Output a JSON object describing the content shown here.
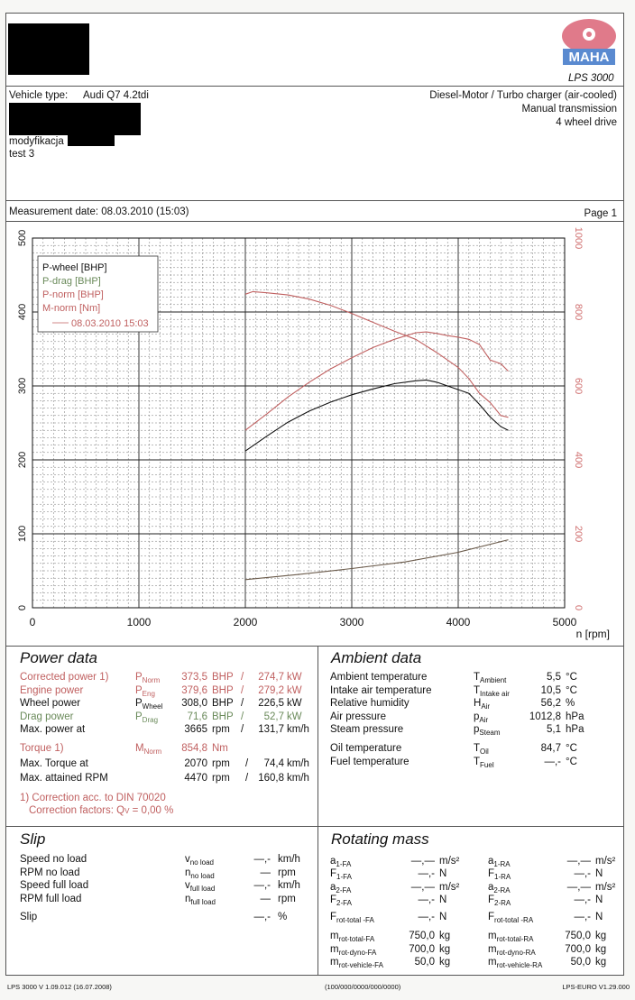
{
  "header": {
    "logo_text": "MAHA",
    "model": "LPS 3000",
    "vehicle_type_label": "Vehicle type:",
    "vehicle_type_value": "Audi Q7 4.2tdi",
    "engine_lines": [
      "Diesel-Motor / Turbo charger (air-cooled)",
      "Manual transmission",
      "4 wheel drive"
    ],
    "notes": [
      "modyfikacja",
      "test 3"
    ],
    "measurement_date": "Measurement date: 08.03.2010 (15:03)",
    "page": "Page 1"
  },
  "chart_data": {
    "type": "line",
    "x_label": "n [rpm]",
    "x_ticks": [
      "0",
      "1000",
      "2000",
      "3000",
      "4000",
      "5000"
    ],
    "y_left_ticks": [
      "0",
      "100",
      "200",
      "300",
      "400",
      "500"
    ],
    "y_right_ticks": [
      "0",
      "200",
      "400",
      "600",
      "800",
      "1000"
    ],
    "xlim": [
      0,
      5000
    ],
    "ylim_left": [
      0,
      500
    ],
    "ylim_right": [
      0,
      1000
    ],
    "grid": true,
    "legend": [
      "P-wheel [BHP]",
      "P-drag [BHP]",
      "P-norm [BHP]",
      "M-norm [Nm]"
    ],
    "legend_run": "08.03.2010 15:03",
    "legend_position": "top-left",
    "series": [
      {
        "name": "P-wheel [BHP]",
        "color": "#111111",
        "axis": "left",
        "x": [
          2000,
          2200,
          2400,
          2600,
          2800,
          3000,
          3200,
          3400,
          3600,
          3700,
          3800,
          3900,
          4000,
          4100,
          4200,
          4300,
          4400,
          4470
        ],
        "y": [
          212,
          232,
          251,
          266,
          278,
          288,
          296,
          303,
          307,
          308,
          305,
          300,
          295,
          290,
          275,
          258,
          245,
          240
        ]
      },
      {
        "name": "P-norm [BHP]",
        "color": "#c06060",
        "axis": "left",
        "x": [
          2000,
          2200,
          2400,
          2600,
          2800,
          3000,
          3200,
          3400,
          3600,
          3700,
          3800,
          3900,
          4000,
          4100,
          4200,
          4300,
          4400,
          4470
        ],
        "y": [
          240,
          262,
          285,
          305,
          323,
          338,
          352,
          363,
          372,
          373,
          371,
          368,
          366,
          363,
          356,
          335,
          330,
          320
        ]
      },
      {
        "name": "M-norm [Nm]",
        "color": "#c06060",
        "axis": "right",
        "x": [
          2000,
          2070,
          2200,
          2400,
          2600,
          2800,
          3000,
          3200,
          3400,
          3600,
          3800,
          4000,
          4100,
          4200,
          4300,
          4400,
          4470
        ],
        "y": [
          848,
          855,
          852,
          846,
          835,
          818,
          796,
          772,
          748,
          726,
          690,
          650,
          620,
          580,
          555,
          520,
          515
        ]
      },
      {
        "name": "P-drag [BHP]",
        "color": "#6a5a4a",
        "axis": "left",
        "x": [
          2000,
          2500,
          3000,
          3500,
          4000,
          4470
        ],
        "y": [
          38,
          45,
          53,
          62,
          75,
          92
        ]
      }
    ]
  },
  "power_data": {
    "title": "Power data",
    "rows": [
      {
        "label": "Corrected power",
        "sup": "1)",
        "sym": "P",
        "sub": "Norm",
        "v1": "373,5",
        "u1": "BHP",
        "v2": "274,7",
        "u2": "kW",
        "color": "red"
      },
      {
        "label": "Engine power",
        "sup": "",
        "sym": "P",
        "sub": "Eng",
        "v1": "379,6",
        "u1": "BHP",
        "v2": "279,2",
        "u2": "kW",
        "color": "red"
      },
      {
        "label": "Wheel power",
        "sup": "",
        "sym": "P",
        "sub": "Wheel",
        "v1": "308,0",
        "u1": "BHP",
        "v2": "226,5",
        "u2": "kW",
        "color": "blk"
      },
      {
        "label": "Drag power",
        "sup": "",
        "sym": "P",
        "sub": "Drag",
        "v1": "71,6",
        "u1": "BHP",
        "v2": "52,7",
        "u2": "kW",
        "color": "green"
      },
      {
        "label": "Max. power at",
        "sup": "",
        "sym": "",
        "sub": "",
        "v1": "3665",
        "u1": "rpm",
        "v2": "131,7",
        "u2": "km/h",
        "color": "blk"
      }
    ],
    "torque_rows": [
      {
        "label": "Torque",
        "sup": "1)",
        "sym": "M",
        "sub": "Norm",
        "v1": "854,8",
        "u1": "Nm",
        "v2": "",
        "u2": "",
        "color": "red"
      },
      {
        "label": "Max. Torque at",
        "sup": "",
        "sym": "",
        "sub": "",
        "v1": "2070",
        "u1": "rpm",
        "v2": "74,4",
        "u2": "km/h",
        "color": "blk"
      },
      {
        "label": "Max. attained RPM",
        "sup": "",
        "sym": "",
        "sub": "",
        "v1": "4470",
        "u1": "rpm",
        "v2": "160,8",
        "u2": "km/h",
        "color": "blk"
      }
    ],
    "correction_line1": "1) Correction acc. to DIN 70020",
    "correction_line2": "Correction factors: Q",
    "correction_sub": "V",
    "correction_value": "= 0,00 %"
  },
  "ambient_data": {
    "title": "Ambient data",
    "rows": [
      {
        "label": "Ambient temperature",
        "sym": "T",
        "sub": "Ambient",
        "value": "5,5",
        "unit": "°C"
      },
      {
        "label": "Intake air temperature",
        "sym": "T",
        "sub": "Intake air",
        "value": "10,5",
        "unit": "°C"
      },
      {
        "label": "Relative humidity",
        "sym": "H",
        "sub": "Air",
        "value": "56,2",
        "unit": "%"
      },
      {
        "label": "Air pressure",
        "sym": "p",
        "sub": "Air",
        "value": "1012,8",
        "unit": "hPa"
      },
      {
        "label": "Steam pressure",
        "sym": "p",
        "sub": "Steam",
        "value": "5,1",
        "unit": "hPa"
      },
      {
        "label": "Oil temperature",
        "sym": "T",
        "sub": "Oil",
        "value": "84,7",
        "unit": "°C"
      },
      {
        "label": "Fuel temperature",
        "sym": "T",
        "sub": "Fuel",
        "value": "—,-",
        "unit": "°C"
      }
    ]
  },
  "slip": {
    "title": "Slip",
    "rows": [
      {
        "label": "Speed no load",
        "sym": "v",
        "sub": "no load",
        "value": "—,-",
        "unit": "km/h"
      },
      {
        "label": "RPM no load",
        "sym": "n",
        "sub": "no load",
        "value": "—",
        "unit": "rpm"
      },
      {
        "label": "Speed full load",
        "sym": "v",
        "sub": "full load",
        "value": "—,-",
        "unit": "km/h"
      },
      {
        "label": "RPM full load",
        "sym": "n",
        "sub": "full load",
        "value": "—",
        "unit": "rpm"
      },
      {
        "label": "Slip",
        "sym": "",
        "sub": "",
        "value": "—,-",
        "unit": "%"
      }
    ]
  },
  "rotating_mass": {
    "title": "Rotating mass",
    "fa": [
      {
        "sym": "a",
        "sub": "1-FA",
        "value": "—,—",
        "unit": "m/s²"
      },
      {
        "sym": "F",
        "sub": "1-FA",
        "value": "—,-",
        "unit": "N"
      },
      {
        "sym": "a",
        "sub": "2-FA",
        "value": "—,—",
        "unit": "m/s²"
      },
      {
        "sym": "F",
        "sub": "2-FA",
        "value": "—,-",
        "unit": "N"
      },
      {
        "sym": "F",
        "sub": "rot-total -FA",
        "value": "—,-",
        "unit": "N"
      },
      {
        "sym": "m",
        "sub": "rot-total-FA",
        "value": "750,0",
        "unit": "kg"
      },
      {
        "sym": "m",
        "sub": "rot-dyno-FA",
        "value": "700,0",
        "unit": "kg"
      },
      {
        "sym": "m",
        "sub": "rot-vehicle-FA",
        "value": "50,0",
        "unit": "kg"
      }
    ],
    "ra": [
      {
        "sym": "a",
        "sub": "1-RA",
        "value": "—,—",
        "unit": "m/s²"
      },
      {
        "sym": "F",
        "sub": "1-RA",
        "value": "—,-",
        "unit": "N"
      },
      {
        "sym": "a",
        "sub": "2-RA",
        "value": "—,—",
        "unit": "m/s²"
      },
      {
        "sym": "F",
        "sub": "2-RA",
        "value": "—,-",
        "unit": "N"
      },
      {
        "sym": "F",
        "sub": "rot-total -RA",
        "value": "—,-",
        "unit": "N"
      },
      {
        "sym": "m",
        "sub": "rot-total-RA",
        "value": "750,0",
        "unit": "kg"
      },
      {
        "sym": "m",
        "sub": "rot-dyno-RA",
        "value": "700,0",
        "unit": "kg"
      },
      {
        "sym": "m",
        "sub": "rot-vehicle-RA",
        "value": "50,0",
        "unit": "kg"
      }
    ]
  },
  "footer": {
    "left": "LPS 3000 V 1.09.012 (16.07.2008)",
    "center": "(100/000/0000/000/0000)",
    "right": "LPS-EURO V1.29.000"
  }
}
